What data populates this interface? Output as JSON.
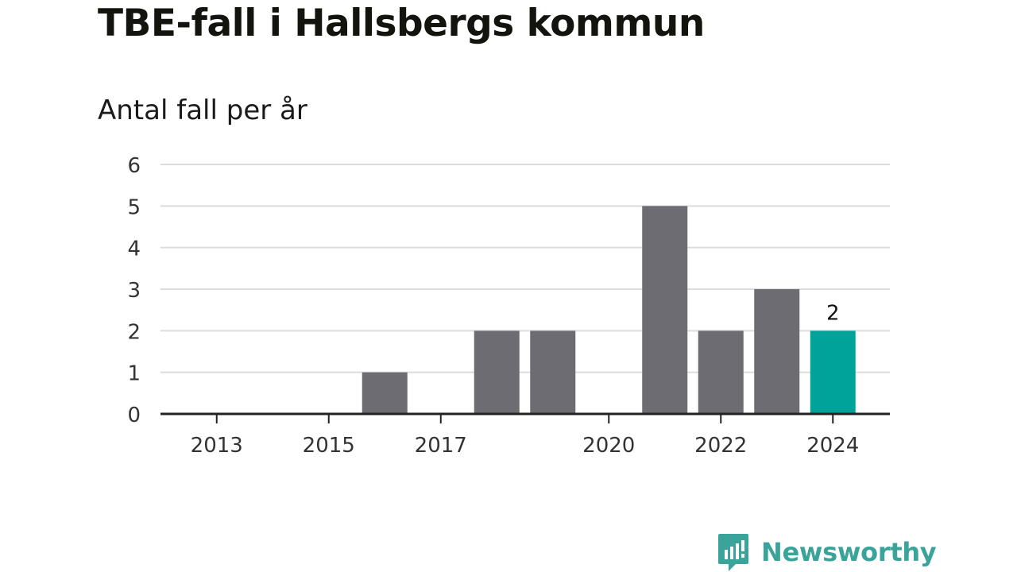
{
  "title": "TBE-fall i Hallsbergs kommun",
  "subtitle": "Antal fall per år",
  "brand": {
    "name": "Newsworthy",
    "color": "#3aa39a",
    "icon": "newsworthy-chart-bubble-icon"
  },
  "chart_data": {
    "type": "bar",
    "categories": [
      "2013",
      "2014",
      "2015",
      "2016",
      "2017",
      "2018",
      "2019",
      "2020",
      "2021",
      "2022",
      "2023",
      "2024"
    ],
    "values": [
      0,
      0,
      0,
      1,
      0,
      2,
      2,
      0,
      5,
      2,
      3,
      2
    ],
    "x_tick_labels": [
      "2013",
      "2015",
      "2017",
      "2020",
      "2022",
      "2024"
    ],
    "y_ticks": [
      0,
      1,
      2,
      3,
      4,
      5,
      6
    ],
    "ylim": [
      0,
      6
    ],
    "grid": true,
    "bar_color": "#6d6c72",
    "highlight": {
      "category": "2024",
      "color": "#00a39a",
      "label": "2"
    }
  }
}
